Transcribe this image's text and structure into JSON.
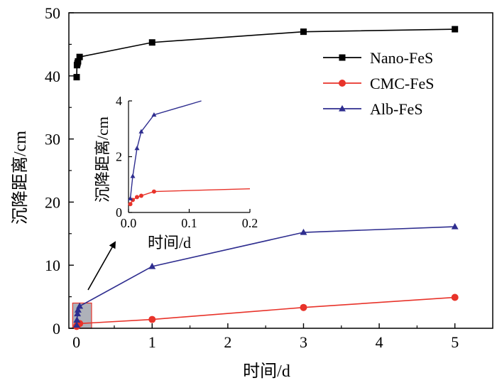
{
  "chart_data": [
    {
      "type": "line",
      "title": "",
      "xlabel": "时间/d",
      "ylabel": "沉降距离/cm",
      "xlim": [
        -0.1,
        5.5
      ],
      "ylim": [
        0,
        50
      ],
      "xticks": [
        0,
        1,
        2,
        3,
        4,
        5
      ],
      "yticks": [
        0,
        10,
        20,
        30,
        40,
        50
      ],
      "legend_position": "top-right",
      "series": [
        {
          "name": "Nano-FeS",
          "color": "#000000",
          "marker": "square",
          "x": [
            0.003,
            0.007,
            0.014,
            0.021,
            0.042,
            1,
            3,
            5
          ],
          "y": [
            39.8,
            41.7,
            42.0,
            42.3,
            43.0,
            45.3,
            47.0,
            47.4
          ]
        },
        {
          "name": "CMC-FeS",
          "color": "#e8332a",
          "marker": "circle",
          "x": [
            0.003,
            0.007,
            0.014,
            0.021,
            0.042,
            1,
            3,
            5
          ],
          "y": [
            0.3,
            0.45,
            0.55,
            0.6,
            0.75,
            1.4,
            3.3,
            4.9
          ]
        },
        {
          "name": "Alb-FeS",
          "color": "#2e2d8f",
          "marker": "triangle",
          "x": [
            0.003,
            0.007,
            0.014,
            0.021,
            0.042,
            1,
            3,
            5
          ],
          "y": [
            0.5,
            1.3,
            2.3,
            2.9,
            3.5,
            9.8,
            15.2,
            16.1
          ]
        }
      ],
      "highlight_region": {
        "x": [
          -0.05,
          0.2
        ],
        "y": [
          0,
          4
        ]
      }
    },
    {
      "type": "line",
      "title": "",
      "xlabel": "时间/d",
      "ylabel": "沉降距离/cm",
      "xlim": [
        0,
        0.2
      ],
      "ylim": [
        0,
        4
      ],
      "xticks": [
        0.0,
        0.1,
        0.2
      ],
      "xtick_labels": [
        "0.0",
        "0.1",
        "0.2"
      ],
      "yticks": [
        0,
        2,
        4
      ],
      "series": [
        {
          "name": "CMC-FeS",
          "color": "#e8332a",
          "marker": "circle",
          "x": [
            0.003,
            0.007,
            0.014,
            0.021,
            0.042,
            0.2
          ],
          "y": [
            0.3,
            0.45,
            0.55,
            0.6,
            0.75,
            0.85
          ]
        },
        {
          "name": "Alb-FeS",
          "color": "#2e2d8f",
          "marker": "triangle",
          "x": [
            0.003,
            0.007,
            0.014,
            0.021,
            0.042,
            0.12
          ],
          "y": [
            0.5,
            1.3,
            2.3,
            2.9,
            3.5,
            4.0
          ]
        }
      ]
    }
  ]
}
